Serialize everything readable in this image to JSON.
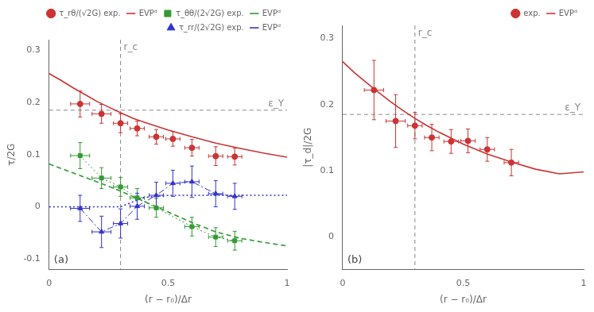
{
  "chart_data": [
    {
      "type": "line",
      "x_label": "(r − r₀)/Δr",
      "y_label": "τ/2G",
      "xlim": [
        0,
        1
      ],
      "ylim": [
        -0.12,
        0.32
      ],
      "xticks": [
        0,
        0.5,
        1
      ],
      "yticks": [
        -0.1,
        0,
        0.1,
        0.2,
        0.3
      ],
      "grid": false,
      "legend": "upper right",
      "annotations": [
        {
          "text": "ε_Y",
          "y": 0.185,
          "color": "#888888"
        },
        {
          "text": "r_c",
          "x": 0.3,
          "color": "#888888"
        },
        {
          "text": "(a)"
        }
      ],
      "series": [
        {
          "name": "τ_rθ/(√2G) exp.",
          "type": "scatter",
          "marker": "circle",
          "color": "#cc3333",
          "x": [
            0.13,
            0.22,
            0.3,
            0.37,
            0.45,
            0.52,
            0.6,
            0.7,
            0.78
          ],
          "values": [
            0.197,
            0.178,
            0.16,
            0.15,
            0.134,
            0.13,
            0.113,
            0.097,
            0.096
          ],
          "yerr": [
            0.025,
            0.018,
            0.018,
            0.014,
            0.014,
            0.014,
            0.016,
            0.018,
            0.016
          ],
          "xerr": [
            0.04,
            0.04,
            0.03,
            0.03,
            0.03,
            0.03,
            0.03,
            0.03,
            0.03
          ]
        },
        {
          "name": "EVPᵈ",
          "type": "line",
          "line_style": "solid",
          "color": "#cc3333",
          "x": [
            0.0,
            0.05,
            0.1,
            0.15,
            0.2,
            0.25,
            0.3,
            0.35,
            0.4,
            0.5,
            0.6,
            0.7,
            0.8,
            0.9,
            1.0
          ],
          "values": [
            0.255,
            0.242,
            0.228,
            0.215,
            0.202,
            0.191,
            0.18,
            0.17,
            0.162,
            0.147,
            0.134,
            0.122,
            0.112,
            0.103,
            0.095
          ]
        },
        {
          "name": "τ_θθ/(2√2G) exp.",
          "type": "scatter",
          "marker": "square",
          "line_style": "dotted",
          "color": "#339933",
          "x": [
            0.13,
            0.22,
            0.3,
            0.37,
            0.45,
            0.6,
            0.7,
            0.78
          ],
          "values": [
            0.098,
            0.055,
            0.038,
            0.017,
            -0.002,
            -0.038,
            -0.058,
            -0.065
          ],
          "yerr": [
            0.025,
            0.02,
            0.018,
            0.018,
            0.018,
            0.018,
            0.018,
            0.018
          ],
          "xerr": [
            0.04,
            0.04,
            0.03,
            0.03,
            0.03,
            0.03,
            0.03,
            0.03
          ]
        },
        {
          "name": "EVPᵈ",
          "type": "line",
          "line_style": "dashed",
          "color": "#339933",
          "x": [
            0.0,
            0.1,
            0.2,
            0.3,
            0.4,
            0.5,
            0.6,
            0.7,
            0.8,
            0.9,
            1.0
          ],
          "values": [
            0.082,
            0.065,
            0.048,
            0.03,
            0.01,
            -0.01,
            -0.03,
            -0.048,
            -0.06,
            -0.068,
            -0.075
          ]
        },
        {
          "name": "τ_rr/(2√2G) exp.",
          "type": "scatter",
          "marker": "triangle",
          "line_style": "dashdot",
          "color": "#3333cc",
          "x": [
            0.13,
            0.22,
            0.3,
            0.37,
            0.45,
            0.52,
            0.6,
            0.7,
            0.78
          ],
          "values": [
            -0.003,
            -0.048,
            -0.032,
            0.001,
            0.022,
            0.045,
            0.048,
            0.025,
            0.02
          ],
          "yerr": [
            0.025,
            0.03,
            0.028,
            0.025,
            0.025,
            0.025,
            0.03,
            0.025,
            0.025
          ],
          "xerr": [
            0.04,
            0.04,
            0.03,
            0.03,
            0.03,
            0.03,
            0.03,
            0.03,
            0.03
          ]
        },
        {
          "name": "EVPᵈ",
          "type": "line",
          "line_style": "dotted",
          "color": "#3333cc",
          "x": [
            0.0,
            0.1,
            0.2,
            0.3,
            0.4,
            0.5,
            0.6,
            0.7,
            0.8,
            0.9,
            1.0
          ],
          "values": [
            0.0,
            0.0,
            0.0,
            0.0,
            0.018,
            0.022,
            0.022,
            0.022,
            0.022,
            0.022,
            0.022
          ]
        }
      ]
    },
    {
      "type": "line",
      "x_label": "(r − r₀)/Δr",
      "y_label": "|τ_d|/2G",
      "xlim": [
        0,
        1
      ],
      "ylim": [
        -0.05,
        0.32
      ],
      "xticks": [
        0,
        0.5,
        1
      ],
      "yticks": [
        0,
        0.1,
        0.2,
        0.3
      ],
      "grid": false,
      "legend": "upper right",
      "annotations": [
        {
          "text": "ε_Y",
          "y": 0.185,
          "color": "#888888"
        },
        {
          "text": "r_c",
          "x": 0.3,
          "color": "#888888"
        },
        {
          "text": "(b)"
        }
      ],
      "series": [
        {
          "name": "exp.",
          "type": "scatter",
          "marker": "circle",
          "color": "#cc3333",
          "x": [
            0.13,
            0.22,
            0.3,
            0.37,
            0.45,
            0.52,
            0.6,
            0.7
          ],
          "values": [
            0.222,
            0.175,
            0.168,
            0.15,
            0.144,
            0.145,
            0.132,
            0.112
          ],
          "yerr": [
            0.045,
            0.04,
            0.02,
            0.02,
            0.018,
            0.018,
            0.018,
            0.02
          ],
          "xerr": [
            0.04,
            0.04,
            0.03,
            0.03,
            0.03,
            0.03,
            0.03,
            0.03
          ]
        },
        {
          "name": "EVPᵈ",
          "type": "line",
          "line_style": "solid",
          "color": "#cc3333",
          "x": [
            0.0,
            0.05,
            0.1,
            0.15,
            0.2,
            0.25,
            0.3,
            0.35,
            0.4,
            0.5,
            0.6,
            0.7,
            0.8,
            0.9,
            1.0
          ],
          "values": [
            0.265,
            0.248,
            0.233,
            0.218,
            0.204,
            0.191,
            0.179,
            0.168,
            0.158,
            0.14,
            0.125,
            0.113,
            0.102,
            0.095,
            0.098
          ]
        }
      ]
    }
  ]
}
